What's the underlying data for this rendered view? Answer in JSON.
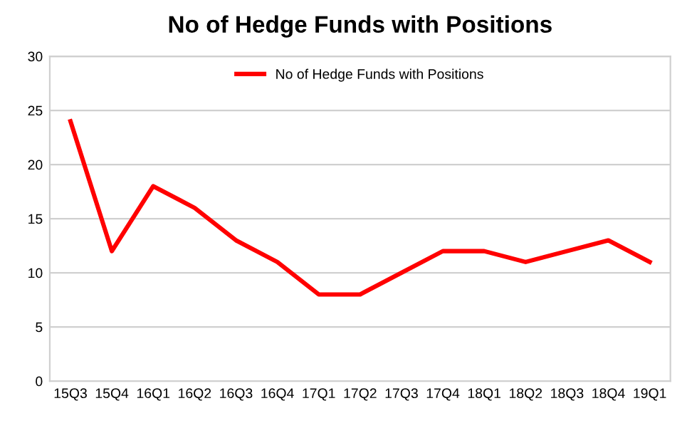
{
  "chart_data": {
    "type": "line",
    "title": "No of Hedge Funds with Positions",
    "categories": [
      "15Q3",
      "15Q4",
      "16Q1",
      "16Q2",
      "16Q3",
      "16Q4",
      "17Q1",
      "17Q2",
      "17Q3",
      "17Q4",
      "18Q1",
      "18Q2",
      "18Q3",
      "18Q4",
      "19Q1"
    ],
    "series": [
      {
        "name": "No of Hedge Funds with Positions",
        "color": "#ff0000",
        "values": [
          24,
          12,
          18,
          16,
          13,
          11,
          8,
          8,
          10,
          12,
          12,
          11,
          12,
          13,
          11
        ]
      }
    ],
    "ylim": [
      0,
      30
    ],
    "yticks": [
      0,
      5,
      10,
      15,
      20,
      25,
      30
    ],
    "grid": "y",
    "legend": "top",
    "marker": "none",
    "line_style": "solid"
  }
}
